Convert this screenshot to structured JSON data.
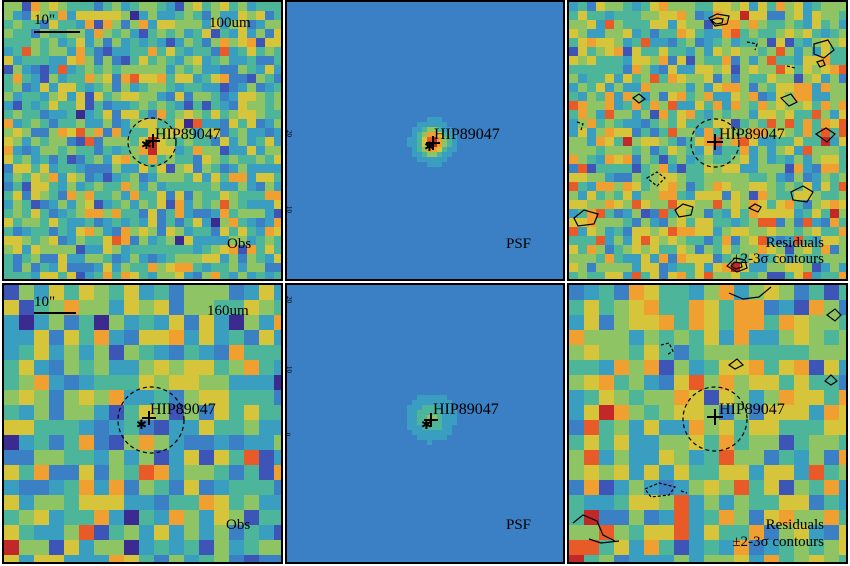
{
  "colors": {
    "colormap": [
      "#3b2a8f",
      "#3e55b8",
      "#3b7fc4",
      "#3a9ec0",
      "#4cb59a",
      "#8ec464",
      "#d6c43a",
      "#f0a030",
      "#e85a28",
      "#c22828"
    ],
    "psf_background": "#4a86c4",
    "frame": "#000000",
    "source_marker": "#000000"
  },
  "panels": [
    {
      "id": "obs-100",
      "band": "100um",
      "scale": "10\"",
      "target": "HIP89047",
      "caption": "Obs"
    },
    {
      "id": "psf-100",
      "target": "HIP89047",
      "caption": "PSF",
      "ticks": [
        "20",
        "10"
      ]
    },
    {
      "id": "res-100",
      "target": "HIP89047",
      "caption_line1": "Residuals",
      "caption_line2": "±2-3σ contours"
    },
    {
      "id": "obs-160",
      "band": "160um",
      "scale": "10\"",
      "target": "HIP89047",
      "caption": "Obs"
    },
    {
      "id": "psf-160",
      "target": "HIP89047",
      "caption": "PSF",
      "ticks": [
        "20",
        "10",
        "0"
      ]
    },
    {
      "id": "res-160",
      "target": "HIP89047",
      "caption_line1": "Residuals",
      "caption_line2": "±2-3σ contours"
    }
  ]
}
